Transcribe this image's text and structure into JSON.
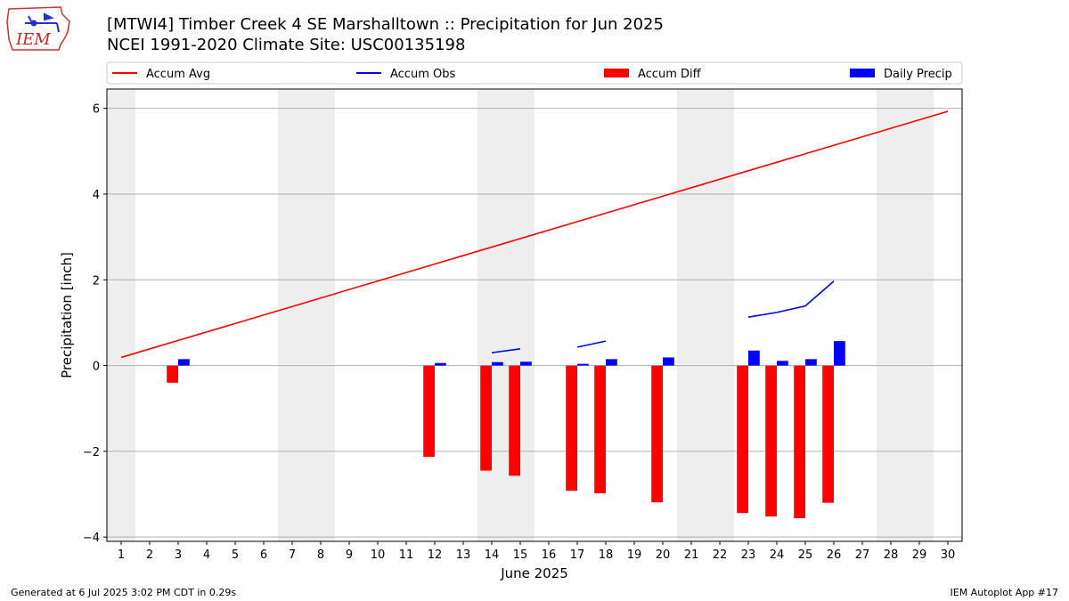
{
  "header": {
    "title_line1": "[MTWI4] Timber Creek 4 SE Marshalltown :: Precipitation for Jun 2025",
    "title_line2": "NCEI 1991-2020 Climate Site: USC00135198",
    "logo_text": "IEM"
  },
  "footer": {
    "left": "Generated at 6 Jul 2025 3:02 PM CDT in 0.29s",
    "right": "IEM Autoplot App #17"
  },
  "colors": {
    "accum_avg": "#ff0000",
    "accum_obs": "#0000ff",
    "accum_diff": "#ff0000",
    "daily_precip": "#0000ff",
    "weekend_shade": "#eeeeee",
    "grid": "#b0b0b0"
  },
  "chart_data": {
    "type": "bar",
    "xlabel": "June 2025",
    "ylabel": "Precipitation [inch]",
    "xlim": [
      0.5,
      30.5
    ],
    "ylim": [
      -4.1,
      6.45
    ],
    "yticks": [
      -4,
      -2,
      0,
      2,
      4,
      6
    ],
    "ytick_labels": [
      "−4",
      "−2",
      "0",
      "2",
      "4",
      "6"
    ],
    "xticks": [
      1,
      2,
      3,
      4,
      5,
      6,
      7,
      8,
      9,
      10,
      11,
      12,
      13,
      14,
      15,
      16,
      17,
      18,
      19,
      20,
      21,
      22,
      23,
      24,
      25,
      26,
      27,
      28,
      29,
      30
    ],
    "grid": "horizontal",
    "legend_position": "top",
    "legend": [
      "Accum Avg",
      "Accum Obs",
      "Accum Diff",
      "Daily Precip"
    ],
    "weekend_shaded_days": [
      1,
      7,
      8,
      14,
      15,
      21,
      22,
      28,
      29
    ],
    "series": [
      {
        "name": "Accum Avg",
        "kind": "line",
        "x": [
          1,
          30
        ],
        "values": [
          0.19,
          5.93
        ]
      },
      {
        "name": "Accum Obs",
        "kind": "line",
        "segments": [
          {
            "x": [
              14,
              15
            ],
            "values": [
              0.3,
              0.39
            ]
          },
          {
            "x": [
              17,
              18
            ],
            "values": [
              0.43,
              0.57
            ]
          },
          {
            "x": [
              23,
              24,
              25,
              26
            ],
            "values": [
              1.13,
              1.24,
              1.39,
              1.97
            ]
          }
        ]
      },
      {
        "name": "Accum Diff",
        "kind": "bar",
        "x": [
          3,
          12,
          14,
          15,
          17,
          18,
          20,
          23,
          24,
          25,
          26
        ],
        "values": [
          -0.4,
          -2.13,
          -2.45,
          -2.57,
          -2.92,
          -2.98,
          -3.19,
          -3.44,
          -3.52,
          -3.56,
          -3.2
        ]
      },
      {
        "name": "Daily Precip",
        "kind": "bar",
        "x": [
          3,
          12,
          14,
          15,
          17,
          18,
          20,
          23,
          24,
          25,
          26
        ],
        "values": [
          0.15,
          0.06,
          0.08,
          0.09,
          0.04,
          0.15,
          0.19,
          0.35,
          0.11,
          0.15,
          0.57
        ]
      }
    ]
  }
}
